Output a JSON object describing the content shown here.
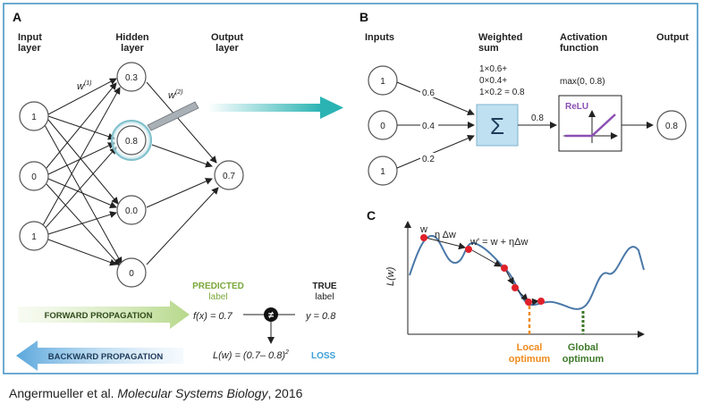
{
  "panel_a": {
    "letter": "A",
    "input_layer_label": [
      "Input",
      "layer"
    ],
    "hidden_layer_label": [
      "Hidden",
      "layer"
    ],
    "output_layer_label": [
      "Output",
      "layer"
    ],
    "inputs": [
      "1",
      "0",
      "1"
    ],
    "hidden": [
      "0.3",
      "0.8",
      "0.0",
      "0"
    ],
    "output": "0.7",
    "w1": "w",
    "w1_sup": "(1)",
    "w2": "w",
    "w2_sup": "(2)",
    "predicted_label": [
      "PREDICTED",
      "label"
    ],
    "true_label": [
      "TRUE",
      "label"
    ],
    "forward": "FORWARD PROPAGATION",
    "backward": "BACKWARD PROPAGATION",
    "f_expr": "f(x) = 0.7",
    "y_expr": "y = 0.8",
    "loss_expr": "L(w) = (0.7– 0.8)",
    "loss_exp": "2",
    "loss_word": "LOSS",
    "neq": "≠"
  },
  "panel_b": {
    "letter": "B",
    "inputs_label": "Inputs",
    "weighted_sum_label": [
      "Weighted",
      "sum"
    ],
    "activation_label": [
      "Activation",
      "function"
    ],
    "output_label": "Output",
    "inputs": [
      "1",
      "0",
      "1"
    ],
    "weights": [
      "0.6",
      "0.4",
      "0.2"
    ],
    "sum_terms": [
      "1×0.6+",
      "0×0.4+",
      "1×0.2 = 0.8"
    ],
    "sigma": "Σ",
    "sum_out": "0.8",
    "activation_expr": "max(0, 0.8)",
    "relu": "ReLU",
    "output": "0.8"
  },
  "panel_c": {
    "letter": "C",
    "ylabel": "L(w)",
    "w_label": "w",
    "eta_label": "η Δw",
    "w_update": "w' = w + ηΔw",
    "local": [
      "Local",
      "optimum"
    ],
    "global": [
      "Global",
      "optimum"
    ]
  },
  "caption": {
    "authors": "Angermueller et al.",
    "journal": "Molecular Systems Biology",
    "year": ", 2016"
  },
  "colors": {
    "border": "#3a8fc2",
    "node_stroke": "#555555",
    "teal_arrow": "#2bb3b3",
    "forward_green": "#b6d88a",
    "backward_blue": "#5aa7dc",
    "green_text": "#7aa83a",
    "loss_blue": "#3a9fd8",
    "sum_box": "#bfe0f0",
    "relu_purple": "#8b4fb3",
    "curve": "#4a78a8",
    "red_dot": "#e0202a",
    "local_orange": "#f08a1c",
    "global_green": "#3e7a2a"
  }
}
